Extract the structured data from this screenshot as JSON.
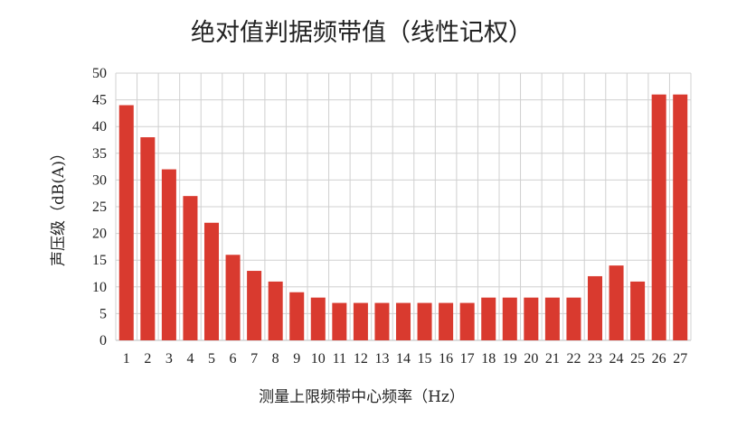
{
  "chart_data": {
    "type": "bar",
    "title": "绝对值判据频带值（线性记权）",
    "xlabel": "测量上限频带中心频率（Hz）",
    "ylabel": "声压级（dB(A)）",
    "categories": [
      "1",
      "2",
      "3",
      "4",
      "5",
      "6",
      "7",
      "8",
      "9",
      "10",
      "11",
      "12",
      "13",
      "14",
      "15",
      "16",
      "17",
      "18",
      "19",
      "20",
      "21",
      "22",
      "23",
      "24",
      "25",
      "26",
      "27"
    ],
    "values": [
      44,
      38,
      32,
      27,
      22,
      16,
      13,
      11,
      9,
      8,
      7,
      7,
      7,
      7,
      7,
      7,
      7,
      8,
      8,
      8,
      8,
      8,
      12,
      14,
      11,
      46,
      46
    ],
    "ylim": [
      0,
      50
    ],
    "yticks": [
      0,
      5,
      10,
      15,
      20,
      25,
      30,
      35,
      40,
      45,
      50
    ],
    "grid": true,
    "legend": "none",
    "bar_color": "#d93a2f"
  }
}
